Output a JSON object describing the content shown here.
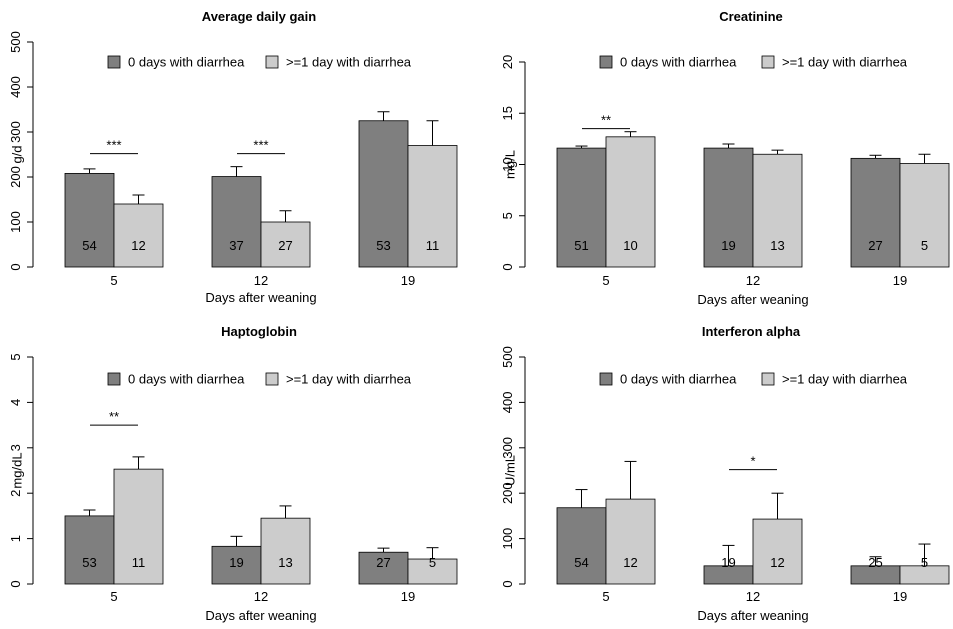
{
  "colors": {
    "group_a": "#7f7f7f",
    "group_b": "#cccccc",
    "axis": "#000000"
  },
  "chart_data": [
    {
      "type": "bar",
      "title": "Average daily gain",
      "xlabel": "Days after weaning",
      "ylabel": "g/d",
      "ylim": [
        0,
        500
      ],
      "yticks": [
        0,
        100,
        200,
        300,
        400,
        500
      ],
      "categories": [
        "5",
        "12",
        "19"
      ],
      "legend": [
        "0 days with diarrhea",
        ">=1 day with diarrhea"
      ],
      "series": [
        {
          "name": "0 days with diarrhea",
          "values": [
            208,
            201,
            325
          ],
          "error": [
            10,
            22,
            20
          ],
          "n": [
            "54",
            "37",
            "53"
          ]
        },
        {
          "name": ">=1 day with diarrhea",
          "values": [
            140,
            100,
            270
          ],
          "error": [
            20,
            25,
            55
          ],
          "n": [
            "12",
            "27",
            "11"
          ]
        }
      ],
      "significance": [
        {
          "category": 0,
          "label": "***",
          "y": 252
        },
        {
          "category": 1,
          "label": "***",
          "y": 252
        }
      ]
    },
    {
      "type": "bar",
      "title": "Creatinine",
      "xlabel": "Days after weaning",
      "ylabel": "mg/L",
      "ylim": [
        0,
        20
      ],
      "yticks": [
        0,
        5,
        10,
        15,
        20
      ],
      "categories": [
        "5",
        "12",
        "19"
      ],
      "legend": [
        "0 days with diarrhea",
        ">=1 day with diarrhea"
      ],
      "series": [
        {
          "name": "0 days with diarrhea",
          "values": [
            11.6,
            11.6,
            10.6
          ],
          "error": [
            0.2,
            0.4,
            0.3
          ],
          "n": [
            "51",
            "19",
            "27"
          ]
        },
        {
          "name": ">=1 day with diarrhea",
          "values": [
            12.7,
            11.0,
            10.1
          ],
          "error": [
            0.5,
            0.4,
            0.9
          ],
          "n": [
            "10",
            "13",
            "5"
          ]
        }
      ],
      "significance": [
        {
          "category": 0,
          "label": "**",
          "y": 13.5
        }
      ]
    },
    {
      "type": "bar",
      "title": "Haptoglobin",
      "xlabel": "Days after weaning",
      "ylabel": "mg/dL",
      "ylim": [
        0,
        5
      ],
      "yticks": [
        0,
        1,
        2,
        3,
        4,
        5
      ],
      "categories": [
        "5",
        "12",
        "19"
      ],
      "legend": [
        "0 days with diarrhea",
        ">=1 day with diarrhea"
      ],
      "series": [
        {
          "name": "0 days with diarrhea",
          "values": [
            1.5,
            0.83,
            0.7
          ],
          "error": [
            0.13,
            0.22,
            0.09
          ],
          "n": [
            "53",
            "19",
            "27"
          ]
        },
        {
          "name": ">=1 day with diarrhea",
          "values": [
            2.53,
            1.45,
            0.55
          ],
          "error": [
            0.27,
            0.27,
            0.25
          ],
          "n": [
            "11",
            "13",
            "5"
          ]
        }
      ],
      "significance": [
        {
          "category": 0,
          "label": "**",
          "y": 3.5
        }
      ]
    },
    {
      "type": "bar",
      "title": "Interferon alpha",
      "xlabel": "Days after weaning",
      "ylabel": "U/mL",
      "ylim": [
        0,
        500
      ],
      "yticks": [
        0,
        100,
        200,
        300,
        400,
        500
      ],
      "categories": [
        "5",
        "12",
        "19"
      ],
      "legend": [
        "0 days with diarrhea",
        ">=1 day with diarrhea"
      ],
      "series": [
        {
          "name": "0 days with diarrhea",
          "values": [
            168,
            40,
            40
          ],
          "error": [
            40,
            45,
            20
          ],
          "n": [
            "54",
            "19",
            "25"
          ]
        },
        {
          "name": ">=1 day with diarrhea",
          "values": [
            187,
            143,
            40
          ],
          "error": [
            83,
            57,
            48
          ],
          "n": [
            "12",
            "12",
            "5"
          ]
        }
      ],
      "significance": [
        {
          "category": 1,
          "label": "*",
          "y": 252
        }
      ]
    }
  ]
}
